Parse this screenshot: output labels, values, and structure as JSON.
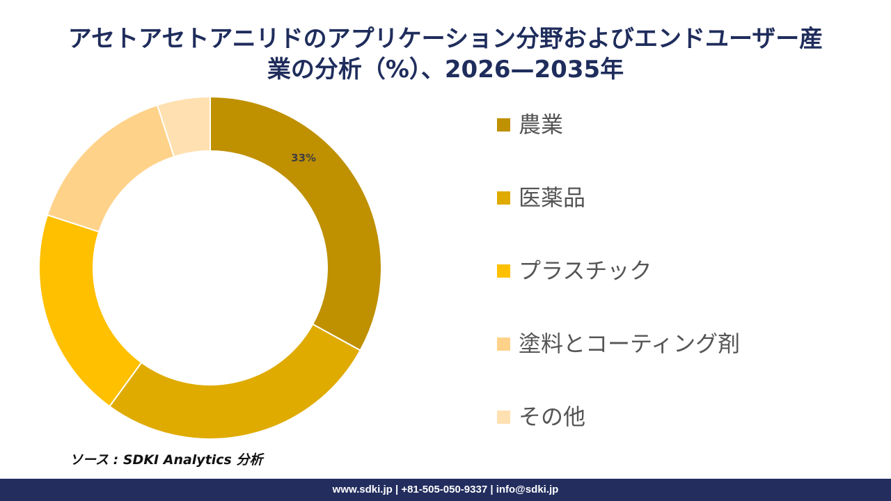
{
  "title_line1": "アセトアセトアニリドのアプリケーション分野およびエンドユーザー産",
  "title_line2": "業の分析（%）、2026—2035年",
  "chart_data": {
    "type": "pie",
    "variant": "donut",
    "categories": [
      "農業",
      "医薬品",
      "プラスチック",
      "塗料とコーティング剤",
      "その他"
    ],
    "values": [
      33,
      27,
      20,
      15,
      5
    ],
    "colors": [
      "#bf9000",
      "#dfab00",
      "#ffc000",
      "#ffd28a",
      "#ffe0b0"
    ],
    "data_labels": [
      "33%",
      "",
      "",
      "",
      ""
    ],
    "legend_position": "right"
  },
  "source": "ソース : SDKI Analytics 分析",
  "footer": "www.sdki.jp | +81-505-050-9337 | info@sdki.jp"
}
